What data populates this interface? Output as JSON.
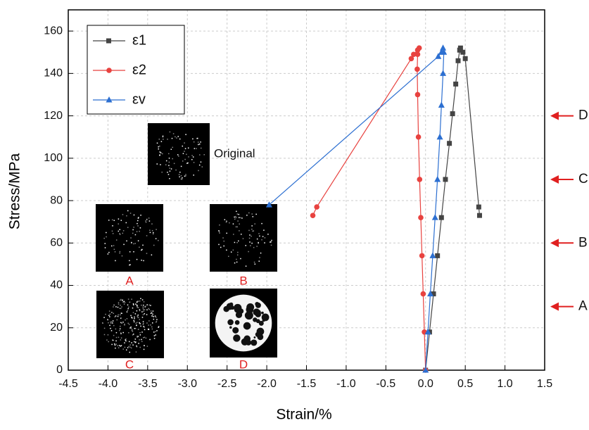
{
  "chart_data": {
    "type": "line",
    "x_label": "Strain/%",
    "y_label": "Stress/MPa",
    "xlim": [
      -4.5,
      1.5
    ],
    "ylim": [
      0,
      170
    ],
    "xticks": [
      -4.5,
      {
        "value": -4,
        "label": "-4.0"
      },
      -3.5,
      {
        "value": -3,
        "label": "-3.0"
      },
      -2.5,
      {
        "value": -2,
        "label": "-2.0"
      },
      -1.5,
      {
        "value": -1,
        "label": "-1.0"
      },
      -0.5,
      {
        "value": 0,
        "label": "0.0"
      },
      0.5,
      {
        "value": 1,
        "label": "1.0"
      },
      1.5
    ],
    "yticks": [
      0,
      20,
      40,
      60,
      80,
      100,
      120,
      140,
      160
    ],
    "grid": true,
    "legend": "upper left",
    "series": [
      {
        "name": "ε1",
        "color": "#444444",
        "marker": "square",
        "x": [
          0,
          0.05,
          0.1,
          0.15,
          0.2,
          0.25,
          0.3,
          0.34,
          0.38,
          0.41,
          0.43,
          0.44,
          0.47,
          0.5,
          0.67,
          0.68
        ],
        "values": [
          0,
          18,
          36,
          54,
          72,
          90,
          107,
          121,
          135,
          146,
          151,
          152,
          150,
          147,
          77,
          73
        ]
      },
      {
        "name": "ε2",
        "color": "#e8423f",
        "marker": "circle",
        "x": [
          0,
          -0.015,
          -0.03,
          -0.045,
          -0.06,
          -0.075,
          -0.09,
          -0.1,
          -0.105,
          -0.1,
          -0.08,
          -0.1,
          -0.15,
          -0.18,
          -1.37,
          -1.42
        ],
        "values": [
          0,
          18,
          36,
          54,
          72,
          90,
          110,
          130,
          142,
          149,
          152,
          151,
          149,
          147,
          77,
          73
        ]
      },
      {
        "name": "εv",
        "color": "#2c6fd1",
        "marker": "triangle",
        "x": [
          0,
          0.03,
          0.06,
          0.09,
          0.12,
          0.15,
          0.18,
          0.2,
          0.22,
          0.23,
          0.22,
          0.2,
          0.16,
          -1.97
        ],
        "values": [
          0,
          18,
          36,
          54,
          72,
          90,
          110,
          125,
          140,
          150,
          152,
          150,
          148,
          78
        ]
      }
    ],
    "annotations": [
      {
        "label": "A",
        "y": 30
      },
      {
        "label": "B",
        "y": 60
      },
      {
        "label": "C",
        "y": 90
      },
      {
        "label": "D",
        "y": 120
      }
    ],
    "images": [
      {
        "label": "Original"
      },
      {
        "label": "A"
      },
      {
        "label": "B"
      },
      {
        "label": "C"
      },
      {
        "label": "D"
      }
    ]
  }
}
